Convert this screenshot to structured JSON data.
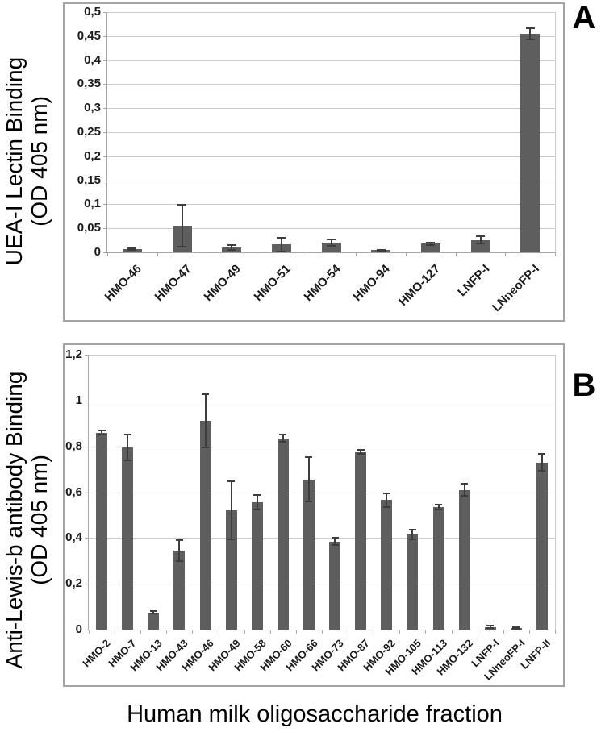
{
  "figure": {
    "xlabel": "Human milk oligosaccharide fraction"
  },
  "chart_data": [
    {
      "type": "bar",
      "panel_label": "A",
      "ylabel": "UEA-I Lectin Binding (OD 405 nm)",
      "ylabel_lines": [
        "UEA-I Lectin Binding",
        "(OD 405 nm)"
      ],
      "xlabel": "",
      "categories": [
        "HMO-46",
        "HMO-47",
        "HMO-49",
        "HMO-51",
        "HMO-54",
        "HMO-94",
        "HMO-127",
        "LNFP-I",
        "LNneoFP-I"
      ],
      "values": [
        0.007,
        0.055,
        0.01,
        0.016,
        0.02,
        0.005,
        0.018,
        0.026,
        0.455
      ],
      "errors": [
        0.003,
        0.045,
        0.007,
        0.016,
        0.009,
        0.002,
        0.004,
        0.01,
        0.013
      ],
      "ylim": [
        0,
        0.5
      ],
      "ytick_values": [
        0,
        0.05,
        0.1,
        0.15,
        0.2,
        0.25,
        0.3,
        0.35,
        0.4,
        0.45,
        0.5
      ],
      "ytick_labels": [
        "0",
        "0,05",
        "0,1",
        "0,15",
        "0,2",
        "0,25",
        "0,3",
        "0,35",
        "0,4",
        "0,45",
        "0,5"
      ],
      "grid": true,
      "legend": "none",
      "bar_color": "#5e5e5e",
      "error_color": "#3d3d3d",
      "grid_color": "#cbcbcb",
      "axis_color": "#a6a6a6"
    },
    {
      "type": "bar",
      "panel_label": "B",
      "ylabel": "Anti-Lewis-b antibody Binding (OD 405 nm)",
      "ylabel_lines": [
        "Anti-Lewis-b antibody Binding",
        "(OD 405 nm)"
      ],
      "xlabel": "",
      "categories": [
        "HMO-2",
        "HMO-7",
        "HMO-13",
        "HMO-43",
        "HMO-46",
        "HMO-49",
        "HMO-58",
        "HMO-60",
        "HMO-66",
        "HMO-73",
        "HMO-87",
        "HMO-92",
        "HMO-105",
        "HMO-113",
        "HMO-132",
        "LNFP-I",
        "LNneoFP-I",
        "LNFP-II"
      ],
      "values": [
        0.86,
        0.795,
        0.075,
        0.345,
        0.91,
        0.52,
        0.555,
        0.835,
        0.655,
        0.385,
        0.775,
        0.565,
        0.415,
        0.535,
        0.61,
        0.012,
        0.008,
        0.73
      ],
      "errors": [
        0.012,
        0.06,
        0.008,
        0.05,
        0.12,
        0.13,
        0.035,
        0.02,
        0.1,
        0.02,
        0.012,
        0.035,
        0.025,
        0.015,
        0.03,
        0.008,
        0.006,
        0.04
      ],
      "ylim": [
        0,
        1.2
      ],
      "ytick_values": [
        0,
        0.2,
        0.4,
        0.6,
        0.8,
        1,
        1.2
      ],
      "ytick_labels": [
        "0",
        "0,2",
        "0,4",
        "0,6",
        "0,8",
        "1",
        "1,2"
      ],
      "grid": true,
      "legend": "none",
      "bar_color": "#5e5e5e",
      "error_color": "#3d3d3d",
      "grid_color": "#cbcbcb",
      "axis_color": "#a6a6a6"
    }
  ]
}
